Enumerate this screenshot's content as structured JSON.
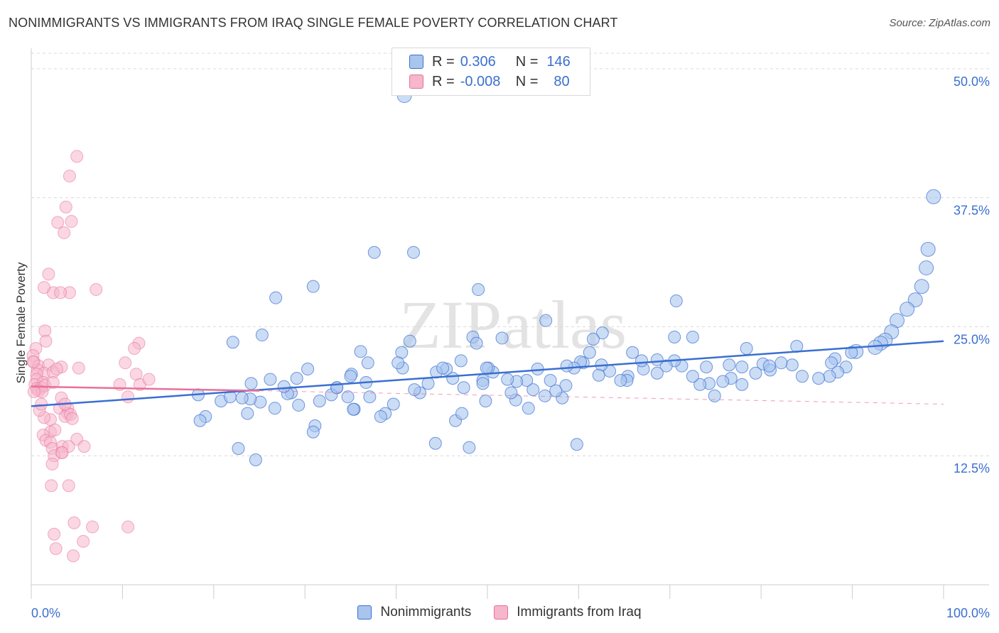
{
  "header": {
    "title": "NONIMMIGRANTS VS IMMIGRANTS FROM IRAQ SINGLE FEMALE POVERTY CORRELATION CHART",
    "source": "Source: ZipAtlas.com"
  },
  "watermark": "ZIPatlas",
  "colors": {
    "blue": "#3a6fd0",
    "blue_fill": "#a9c5ee",
    "pink": "#e8709a",
    "pink_fill": "#f6b6cc",
    "grid": "#d9d9d9"
  },
  "legend": {
    "rows": [
      {
        "r_label": "R =",
        "r_value": "0.306",
        "n_label": "N =",
        "n_value": "146"
      },
      {
        "r_label": "R =",
        "r_value": "-0.008",
        "n_label": "N =",
        "n_value": "80"
      }
    ]
  },
  "bottom_legend": {
    "items": [
      "Nonimmigrants",
      "Immigrants from Iraq"
    ]
  },
  "chart_data": {
    "type": "scatter",
    "title": "NONIMMIGRANTS VS IMMIGRANTS FROM IRAQ SINGLE FEMALE POVERTY CORRELATION CHART",
    "xlabel": "",
    "ylabel": "Single Female Poverty",
    "xlim": [
      0,
      100
    ],
    "ylim": [
      0,
      51.5
    ],
    "x_tick_labels": [
      "0.0%",
      "100.0%"
    ],
    "y_ticks": [
      12.5,
      25.0,
      37.5,
      50.0
    ],
    "y_tick_labels": [
      "12.5%",
      "25.0%",
      "37.5%",
      "50.0%"
    ],
    "grid": true,
    "series": [
      {
        "name": "Nonimmigrants",
        "color": "#3a6fd0",
        "trend": {
          "x": [
            0,
            100
          ],
          "y": [
            17.3,
            23.6
          ]
        },
        "points": [
          [
            40.9,
            47.4
          ],
          [
            98.9,
            37.6
          ],
          [
            98.3,
            32.5
          ],
          [
            41.9,
            32.2
          ],
          [
            98.1,
            30.7
          ],
          [
            97.6,
            28.9
          ],
          [
            96.9,
            27.6
          ],
          [
            96.0,
            26.7
          ],
          [
            94.9,
            25.6
          ],
          [
            94.3,
            24.5
          ],
          [
            93.6,
            23.7
          ],
          [
            93.1,
            23.4
          ],
          [
            92.5,
            23.0
          ],
          [
            90.4,
            22.6
          ],
          [
            89.9,
            22.5
          ],
          [
            88.1,
            21.9
          ],
          [
            89.3,
            21.1
          ],
          [
            87.7,
            21.5
          ],
          [
            88.4,
            20.6
          ],
          [
            87.5,
            20.2
          ],
          [
            86.3,
            20.0
          ],
          [
            84.5,
            20.2
          ],
          [
            83.4,
            21.3
          ],
          [
            82.2,
            21.5
          ],
          [
            83.9,
            23.1
          ],
          [
            80.2,
            21.4
          ],
          [
            81.0,
            20.8
          ],
          [
            79.4,
            20.5
          ],
          [
            77.9,
            21.1
          ],
          [
            80.9,
            21.2
          ],
          [
            78.4,
            22.9
          ],
          [
            77.9,
            19.4
          ],
          [
            76.7,
            20.0
          ],
          [
            75.8,
            19.7
          ],
          [
            74.9,
            18.3
          ],
          [
            74.3,
            19.5
          ],
          [
            73.3,
            19.4
          ],
          [
            76.5,
            21.3
          ],
          [
            74.0,
            21.1
          ],
          [
            72.5,
            20.2
          ],
          [
            71.3,
            21.2
          ],
          [
            70.5,
            21.7
          ],
          [
            72.5,
            24.0
          ],
          [
            70.7,
            27.5
          ],
          [
            69.6,
            21.2
          ],
          [
            70.5,
            24.0
          ],
          [
            68.6,
            21.8
          ],
          [
            68.6,
            20.5
          ],
          [
            67.1,
            20.9
          ],
          [
            66.9,
            21.7
          ],
          [
            65.4,
            20.2
          ],
          [
            65.9,
            22.5
          ],
          [
            65.3,
            19.8
          ],
          [
            64.6,
            19.8
          ],
          [
            63.4,
            20.7
          ],
          [
            62.5,
            21.3
          ],
          [
            62.2,
            20.3
          ],
          [
            60.5,
            21.5
          ],
          [
            61.2,
            22.5
          ],
          [
            62.6,
            24.4
          ],
          [
            61.6,
            23.8
          ],
          [
            60.2,
            21.6
          ],
          [
            59.5,
            21.0
          ],
          [
            58.7,
            21.2
          ],
          [
            58.6,
            19.3
          ],
          [
            58.2,
            18.1
          ],
          [
            57.5,
            18.8
          ],
          [
            56.9,
            19.8
          ],
          [
            56.3,
            18.3
          ],
          [
            55.0,
            18.9
          ],
          [
            55.5,
            20.9
          ],
          [
            56.4,
            25.6
          ],
          [
            54.3,
            19.8
          ],
          [
            53.2,
            19.7
          ],
          [
            53.1,
            17.9
          ],
          [
            52.6,
            18.6
          ],
          [
            52.2,
            19.9
          ],
          [
            51.6,
            23.9
          ],
          [
            50.6,
            20.6
          ],
          [
            50.1,
            21.0
          ],
          [
            49.5,
            19.8
          ],
          [
            49.9,
            21.0
          ],
          [
            48.4,
            24.0
          ],
          [
            48.8,
            23.4
          ],
          [
            47.4,
            19.1
          ],
          [
            47.1,
            21.7
          ],
          [
            46.2,
            20.0
          ],
          [
            45.5,
            20.9
          ],
          [
            44.4,
            20.6
          ],
          [
            43.5,
            19.5
          ],
          [
            42.6,
            18.6
          ],
          [
            42.0,
            18.9
          ],
          [
            41.5,
            23.6
          ],
          [
            40.6,
            22.5
          ],
          [
            40.7,
            21.0
          ],
          [
            39.7,
            17.5
          ],
          [
            38.8,
            16.6
          ],
          [
            38.3,
            16.3
          ],
          [
            37.1,
            18.2
          ],
          [
            36.7,
            19.6
          ],
          [
            35.4,
            17.0
          ],
          [
            35.3,
            17.0
          ],
          [
            34.7,
            18.2
          ],
          [
            35.1,
            20.4
          ],
          [
            33.5,
            19.1
          ],
          [
            32.9,
            18.4
          ],
          [
            31.6,
            17.8
          ],
          [
            31.1,
            15.4
          ],
          [
            30.9,
            14.8
          ],
          [
            30.3,
            20.9
          ],
          [
            29.3,
            17.4
          ],
          [
            29.1,
            20.0
          ],
          [
            28.5,
            18.6
          ],
          [
            28.1,
            18.5
          ],
          [
            26.2,
            19.9
          ],
          [
            26.7,
            17.1
          ],
          [
            25.1,
            17.7
          ],
          [
            24.0,
            18.0
          ],
          [
            23.7,
            16.6
          ],
          [
            24.6,
            12.1
          ],
          [
            22.7,
            13.2
          ],
          [
            25.3,
            24.2
          ],
          [
            26.8,
            27.8
          ],
          [
            24.1,
            19.5
          ],
          [
            19.1,
            16.3
          ],
          [
            18.5,
            15.9
          ],
          [
            18.3,
            18.4
          ],
          [
            20.8,
            17.8
          ],
          [
            21.8,
            18.2
          ],
          [
            23.1,
            18.1
          ],
          [
            37.6,
            32.2
          ],
          [
            44.3,
            13.7
          ],
          [
            46.5,
            15.9
          ],
          [
            47.2,
            16.6
          ],
          [
            48.0,
            13.3
          ],
          [
            49.0,
            28.6
          ],
          [
            49.5,
            19.5
          ],
          [
            22.1,
            23.5
          ],
          [
            54.5,
            17.1
          ],
          [
            59.8,
            13.6
          ],
          [
            49.8,
            17.8
          ],
          [
            45.1,
            21.0
          ],
          [
            35.0,
            20.2
          ],
          [
            36.9,
            21.5
          ],
          [
            40.2,
            21.5
          ],
          [
            30.9,
            28.9
          ],
          [
            27.7,
            19.2
          ],
          [
            33.5,
            19.1
          ],
          [
            36.1,
            22.6
          ]
        ]
      },
      {
        "name": "Immigrants from Iraq",
        "color": "#e8709a",
        "trend": {
          "x": [
            0,
            25
          ],
          "y": [
            19.2,
            18.8
          ]
        },
        "trend_dashed": {
          "x": [
            25,
            100
          ],
          "y": [
            18.8,
            17.5
          ]
        },
        "points": [
          [
            5.0,
            41.5
          ],
          [
            4.2,
            39.6
          ],
          [
            3.8,
            36.6
          ],
          [
            4.4,
            35.2
          ],
          [
            2.9,
            35.1
          ],
          [
            3.6,
            34.1
          ],
          [
            7.1,
            28.6
          ],
          [
            1.9,
            30.1
          ],
          [
            4.2,
            28.3
          ],
          [
            2.4,
            28.3
          ],
          [
            1.4,
            28.8
          ],
          [
            3.2,
            28.3
          ],
          [
            1.5,
            24.6
          ],
          [
            11.8,
            23.4
          ],
          [
            1.6,
            23.6
          ],
          [
            11.3,
            22.9
          ],
          [
            0.5,
            22.9
          ],
          [
            0.2,
            22.2
          ],
          [
            0.3,
            21.6
          ],
          [
            0.8,
            21.2
          ],
          [
            5.2,
            21.0
          ],
          [
            10.3,
            21.5
          ],
          [
            11.5,
            20.4
          ],
          [
            1.9,
            21.3
          ],
          [
            3.3,
            21.1
          ],
          [
            0.7,
            20.8
          ],
          [
            1.4,
            20.5
          ],
          [
            2.4,
            20.6
          ],
          [
            0.6,
            20.4
          ],
          [
            0.6,
            19.9
          ],
          [
            0.4,
            19.4
          ],
          [
            1.3,
            19.6
          ],
          [
            0.6,
            19.0
          ],
          [
            1.1,
            19.1
          ],
          [
            0.8,
            18.8
          ],
          [
            1.5,
            19.3
          ],
          [
            9.7,
            19.4
          ],
          [
            11.9,
            19.4
          ],
          [
            12.9,
            19.9
          ],
          [
            1.2,
            18.7
          ],
          [
            0.3,
            18.7
          ],
          [
            10.6,
            18.2
          ],
          [
            3.3,
            18.1
          ],
          [
            3.1,
            17.1
          ],
          [
            4.0,
            17.1
          ],
          [
            4.0,
            16.6
          ],
          [
            3.7,
            16.3
          ],
          [
            4.3,
            16.5
          ],
          [
            4.5,
            16.1
          ],
          [
            2.1,
            16.0
          ],
          [
            1.4,
            16.2
          ],
          [
            2.1,
            14.8
          ],
          [
            2.6,
            15.0
          ],
          [
            1.3,
            14.5
          ],
          [
            1.6,
            14.0
          ],
          [
            2.1,
            13.8
          ],
          [
            5.0,
            14.1
          ],
          [
            2.3,
            13.2
          ],
          [
            3.4,
            13.4
          ],
          [
            5.8,
            13.4
          ],
          [
            4.1,
            13.4
          ],
          [
            3.3,
            12.8
          ],
          [
            2.5,
            12.5
          ],
          [
            3.4,
            12.8
          ],
          [
            2.3,
            11.7
          ],
          [
            2.2,
            9.6
          ],
          [
            4.1,
            9.6
          ],
          [
            4.7,
            6.0
          ],
          [
            6.7,
            5.6
          ],
          [
            2.5,
            4.9
          ],
          [
            5.7,
            4.2
          ],
          [
            10.6,
            5.6
          ],
          [
            2.7,
            3.5
          ],
          [
            4.6,
            2.8
          ],
          [
            0.9,
            16.9
          ],
          [
            1.1,
            17.5
          ],
          [
            3.7,
            17.5
          ],
          [
            2.4,
            19.6
          ],
          [
            0.2,
            21.6
          ],
          [
            2.8,
            20.9
          ]
        ]
      }
    ]
  }
}
